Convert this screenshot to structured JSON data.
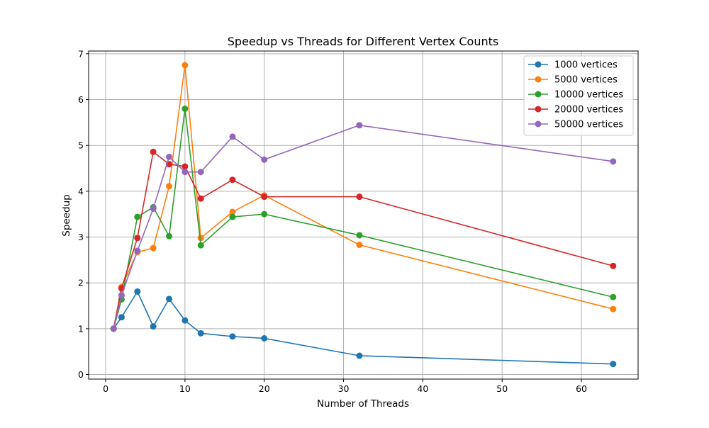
{
  "chart_data": {
    "type": "line",
    "title": "Speedup vs Threads for Different Vertex Counts",
    "xlabel": "Number of Threads",
    "ylabel": "Speedup",
    "xlim": [
      -2.15,
      67.15
    ],
    "ylim": [
      -0.1,
      7.06
    ],
    "xticks": [
      0,
      10,
      20,
      30,
      40,
      50,
      60
    ],
    "yticks": [
      0,
      1,
      2,
      3,
      4,
      5,
      6,
      7
    ],
    "grid": true,
    "legend_position": "top-right",
    "x": [
      1,
      2,
      4,
      6,
      8,
      10,
      12,
      16,
      20,
      32,
      64
    ],
    "series": [
      {
        "name": "1000 vertices",
        "color": "#1f77b4",
        "values": [
          1.0,
          1.25,
          1.81,
          1.05,
          1.65,
          1.18,
          0.9,
          0.83,
          0.79,
          0.41,
          0.23
        ]
      },
      {
        "name": "5000 vertices",
        "color": "#ff7f0e",
        "values": [
          1.0,
          1.91,
          2.67,
          2.76,
          4.11,
          6.75,
          2.98,
          3.55,
          3.91,
          2.83,
          1.43
        ]
      },
      {
        "name": "10000 vertices",
        "color": "#2ca02c",
        "values": [
          1.0,
          1.64,
          3.44,
          3.65,
          3.02,
          5.8,
          2.82,
          3.44,
          3.5,
          3.04,
          1.69
        ]
      },
      {
        "name": "20000 vertices",
        "color": "#d62728",
        "values": [
          1.0,
          1.88,
          2.98,
          4.86,
          4.59,
          4.54,
          3.84,
          4.25,
          3.88,
          3.88,
          2.37
        ]
      },
      {
        "name": "50000 vertices",
        "color": "#9467bd",
        "values": [
          1.0,
          1.73,
          2.7,
          3.62,
          4.75,
          4.42,
          4.42,
          5.19,
          4.69,
          5.44,
          4.65
        ]
      }
    ]
  }
}
